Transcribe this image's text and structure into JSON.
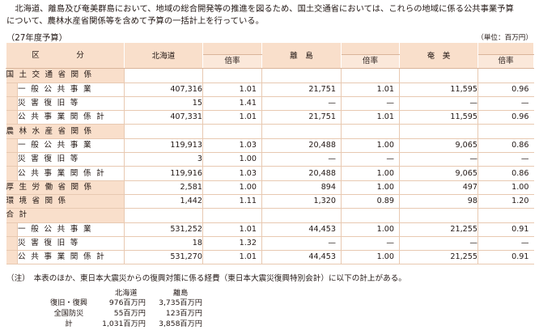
{
  "intro": {
    "line1": "北海道、離島及び奄美群島において、地域の総合開発等の推進を図るため、国土交通省においては、これらの地域に係る公共事業予算",
    "line2": "について、農林水産省関係等を含めて予算の一括計上を行っている。"
  },
  "subtitle": "（27年度予算）",
  "unit": "（単位：百万円）",
  "header": {
    "kubun": "区　分",
    "hokkaido": "北海道",
    "ritou": "離　島",
    "amami": "奄　美",
    "ratio": "倍率"
  },
  "rows": [
    {
      "type": "cat",
      "label": "国土交通省関係",
      "h": "",
      "hr": "",
      "r": "",
      "rr": "",
      "a": "",
      "ar": ""
    },
    {
      "type": "sub",
      "label": "一般公共事業",
      "h": "407,316",
      "hr": "1.01",
      "r": "21,751",
      "rr": "1.01",
      "a": "11,595",
      "ar": "0.96"
    },
    {
      "type": "sub",
      "label": "災害復旧等",
      "h": "15",
      "hr": "1.41",
      "r": "—",
      "rr": "—",
      "a": "—",
      "ar": "—"
    },
    {
      "type": "sub",
      "label": "公共事業関係計",
      "h": "407,331",
      "hr": "1.01",
      "r": "21,751",
      "rr": "1.01",
      "a": "11,595",
      "ar": "0.96"
    },
    {
      "type": "cat",
      "label": "農林水産省関係",
      "h": "",
      "hr": "",
      "r": "",
      "rr": "",
      "a": "",
      "ar": ""
    },
    {
      "type": "sub",
      "label": "一般公共事業",
      "h": "119,913",
      "hr": "1.03",
      "r": "20,488",
      "rr": "1.00",
      "a": "9,065",
      "ar": "0.86"
    },
    {
      "type": "sub",
      "label": "災害復旧等",
      "h": "3",
      "hr": "1.00",
      "r": "—",
      "rr": "—",
      "a": "—",
      "ar": "—"
    },
    {
      "type": "sub",
      "label": "公共事業関係計",
      "h": "119,916",
      "hr": "1.03",
      "r": "20,488",
      "rr": "1.00",
      "a": "9,065",
      "ar": "0.86"
    },
    {
      "type": "catv",
      "label": "厚生労働省関係",
      "h": "2,581",
      "hr": "1.00",
      "r": "894",
      "rr": "1.00",
      "a": "497",
      "ar": "1.00"
    },
    {
      "type": "catv",
      "label": "環境省関係",
      "h": "1,442",
      "hr": "1.11",
      "r": "1,320",
      "rr": "0.89",
      "a": "98",
      "ar": "1.20"
    },
    {
      "type": "cat",
      "label": "合計",
      "h": "",
      "hr": "",
      "r": "",
      "rr": "",
      "a": "",
      "ar": ""
    },
    {
      "type": "sub",
      "label": "一般公共事業",
      "h": "531,252",
      "hr": "1.01",
      "r": "44,453",
      "rr": "1.00",
      "a": "21,255",
      "ar": "0.91"
    },
    {
      "type": "sub",
      "label": "災害復旧等",
      "h": "18",
      "hr": "1.32",
      "r": "—",
      "rr": "—",
      "a": "—",
      "ar": "—"
    },
    {
      "type": "sub",
      "label": "公共事業関係計",
      "h": "531,270",
      "hr": "1.01",
      "r": "44,453",
      "rr": "1.00",
      "a": "21,255",
      "ar": "0.91"
    }
  ],
  "note": {
    "text": "（注）　本表のほか、東日本大震災からの復興対策に係る経費（東日本大震災復興特別会計）に以下の計上がある。",
    "col1": "北海道",
    "col2": "離島",
    "items": [
      {
        "label": "復旧・復興",
        "v1": "976百万円",
        "v2": "3,735百万円"
      },
      {
        "label": "全国防災",
        "v1": "55百万円",
        "v2": "123百万円"
      },
      {
        "label": "計",
        "v1": "1,031百万円",
        "v2": "3,858百万円"
      }
    ]
  }
}
